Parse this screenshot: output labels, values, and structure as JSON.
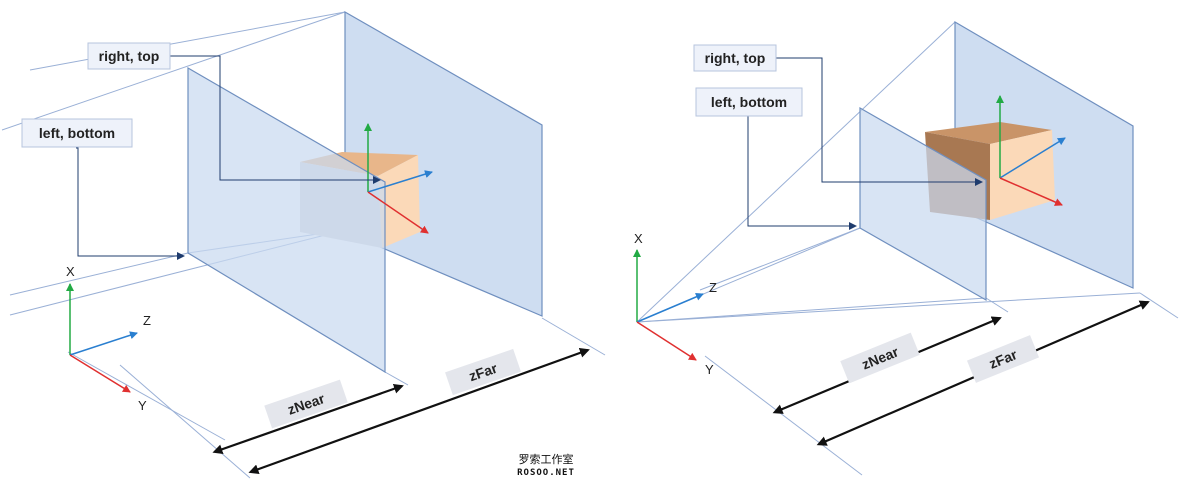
{
  "left_view": {
    "callouts": {
      "right_top": "right, top",
      "left_bottom": "left, bottom"
    },
    "axes": {
      "x": "X",
      "y": "Y",
      "z": "Z"
    },
    "distances": {
      "near": "zNear",
      "far": "zFar"
    }
  },
  "right_view": {
    "callouts": {
      "right_top": "right, top",
      "left_bottom": "left, bottom"
    },
    "axes": {
      "x": "X",
      "y": "Y",
      "z": "Z"
    },
    "distances": {
      "near": "zNear",
      "far": "zFar"
    }
  },
  "watermark": {
    "chinese": "罗索工作室",
    "site": "ROSOO.NET"
  },
  "colors": {
    "plane_fill": "#c9d9f0",
    "plane_edge": "#6f8fbf",
    "guide_line": "#9ab0d6",
    "axis_x": "#22aa44",
    "axis_y": "#e03030",
    "axis_z": "#2a7fd0",
    "cube_top": "#e8b68a",
    "cube_front": "#fbd9b8",
    "cube_dark": "#a87852",
    "callout_fill": "#eef2fa",
    "callout_border": "#b7c4de"
  }
}
